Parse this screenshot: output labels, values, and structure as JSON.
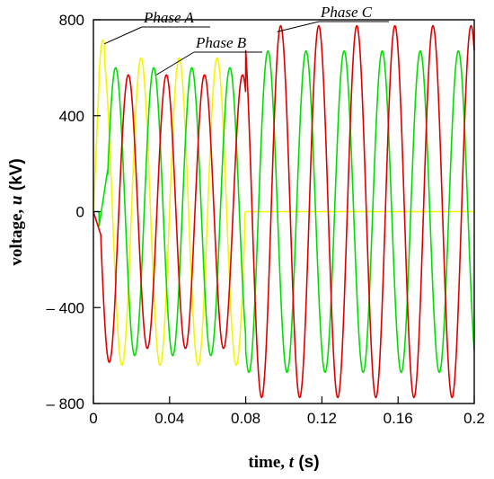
{
  "chart_data": {
    "type": "line",
    "title": "",
    "xlabel": {
      "text": "time, ",
      "var": "t",
      "unit": " (s)"
    },
    "ylabel": {
      "text": "voltage, ",
      "var": "u",
      "unit": " (kV)"
    },
    "xlim": [
      0,
      0.2
    ],
    "ylim": [
      -800,
      800
    ],
    "x_ticks": [
      0,
      0.04,
      0.08,
      0.12,
      0.16,
      0.2
    ],
    "x_tick_labels": [
      "0",
      "0.04",
      "0.08",
      "0.12",
      "0.16",
      "0.2"
    ],
    "y_ticks": [
      -800,
      -400,
      0,
      400,
      800
    ],
    "y_tick_labels": [
      "– 800",
      "– 400",
      "0",
      "400",
      "800"
    ],
    "grid": false,
    "legend": "none",
    "frequency_hz": 50,
    "series": [
      {
        "name": "Phase A",
        "color": "#f5f500",
        "annotation_point": [
          0.0058,
          700
        ],
        "segments": [
          {
            "t_start": 0.0,
            "t_end": 0.003,
            "shape": "ramp",
            "from": 0,
            "to": 540
          },
          {
            "t_start": 0.003,
            "t_end": 0.0059,
            "shape": "sine",
            "amplitude": 715,
            "phase_deg": 0,
            "offset": 0
          },
          {
            "t_start": 0.0059,
            "t_end": 0.0795,
            "shape": "sine",
            "amplitude": 640,
            "phase_deg": 0,
            "offset": 0
          },
          {
            "t_start": 0.0795,
            "t_end": 0.08,
            "shape": "sine",
            "amplitude": 55,
            "phase_deg": 0,
            "offset": 0
          },
          {
            "t_start": 0.08,
            "t_end": 0.2,
            "shape": "flat",
            "value": 0
          }
        ]
      },
      {
        "name": "Phase B",
        "color": "#00e000",
        "annotation_point": [
          0.033,
          570
        ],
        "segments": [
          {
            "t_start": 0.0,
            "t_end": 0.003,
            "shape": "flat",
            "value": 0
          },
          {
            "t_start": 0.003,
            "t_end": 0.0075,
            "shape": "ramp",
            "from": -60,
            "to": 175
          },
          {
            "t_start": 0.0075,
            "t_end": 0.08,
            "shape": "sine",
            "amplitude": 600,
            "phase_deg": -120,
            "offset": 0
          },
          {
            "t_start": 0.08,
            "t_end": 0.2,
            "shape": "sine",
            "amplitude": 670,
            "phase_deg": -120,
            "offset": 0
          }
        ]
      },
      {
        "name": "Phase C",
        "color": "#e00000",
        "annotation_point": [
          0.0965,
          750
        ],
        "segments": [
          {
            "t_start": 0.0,
            "t_end": 0.004,
            "shape": "ramp",
            "from": 0,
            "to": -100
          },
          {
            "t_start": 0.004,
            "t_end": 0.0118,
            "shape": "sine",
            "amplitude": 628,
            "phase_deg": 120,
            "offset": 0
          },
          {
            "t_start": 0.0118,
            "t_end": 0.08,
            "shape": "sine",
            "amplitude": 570,
            "phase_deg": 120,
            "offset": 0
          },
          {
            "t_start": 0.08,
            "t_end": 0.2,
            "shape": "sine",
            "amplitude": 775,
            "phase_deg": 120,
            "offset": 0
          }
        ]
      }
    ]
  }
}
